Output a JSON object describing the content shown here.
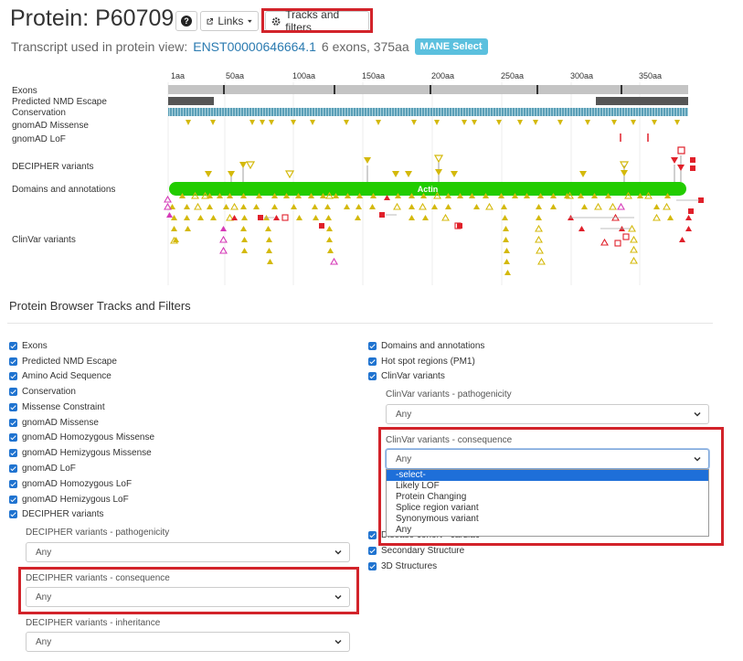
{
  "header": {
    "title": "Protein: P60709",
    "help_icon": "question-circle-icon",
    "links_label": "Links",
    "tracks_label": "Tracks and filters"
  },
  "transcript": {
    "prefix": "Transcript used in protein view:",
    "id": "ENST00000646664.1",
    "info": "6 exons, 375aa",
    "badge": "MANE Select"
  },
  "viewer": {
    "ticks": [
      "1aa",
      "50aa",
      "100aa",
      "150aa",
      "200aa",
      "250aa",
      "300aa",
      "350aa"
    ],
    "tracks": [
      "Exons",
      "Predicted NMD Escape",
      "Conservation",
      "gnomAD Missense",
      "gnomAD LoF",
      "DECIPHER variants",
      "Domains and annotations",
      "ClinVar variants"
    ],
    "domain_label": "Actin",
    "colors": {
      "domain": "#22cc00",
      "missense": "#d4b90b",
      "lof": "#e0202a",
      "exon": "#bdbdbd",
      "conservation": "#5aa0b8",
      "splice": "#d63ab8"
    }
  },
  "filters": {
    "title": "Protein Browser Tracks and Filters",
    "left": [
      "Exons",
      "Predicted NMD Escape",
      "Amino Acid Sequence",
      "Conservation",
      "Missense Constraint",
      "gnomAD Missense",
      "gnomAD Homozygous Missense",
      "gnomAD Hemizygous Missense",
      "gnomAD LoF",
      "gnomAD Homozygous LoF",
      "gnomAD Hemizygous LoF",
      "DECIPHER variants"
    ],
    "right_top": [
      "Domains and annotations",
      "Hot spot regions (PM1)",
      "ClinVar variants"
    ],
    "right_bottom": [
      "Disease cohort - cardiac",
      "Secondary Structure",
      "3D Structures"
    ],
    "decipher_path_label": "DECIPHER variants - pathogenicity",
    "decipher_path_value": "Any",
    "decipher_cons_label": "DECIPHER variants - consequence",
    "decipher_cons_value": "Any",
    "decipher_inh_label": "DECIPHER variants - inheritance",
    "decipher_inh_value": "Any",
    "clinvar_path_label": "ClinVar variants - pathogenicity",
    "clinvar_path_value": "Any",
    "clinvar_cons_label": "ClinVar variants - consequence",
    "clinvar_cons_value": "Any",
    "clinvar_cons_options": [
      "-select-",
      "Likely LOF",
      "Protein Changing",
      "Splice region variant",
      "Synonymous variant",
      "Any"
    ]
  }
}
